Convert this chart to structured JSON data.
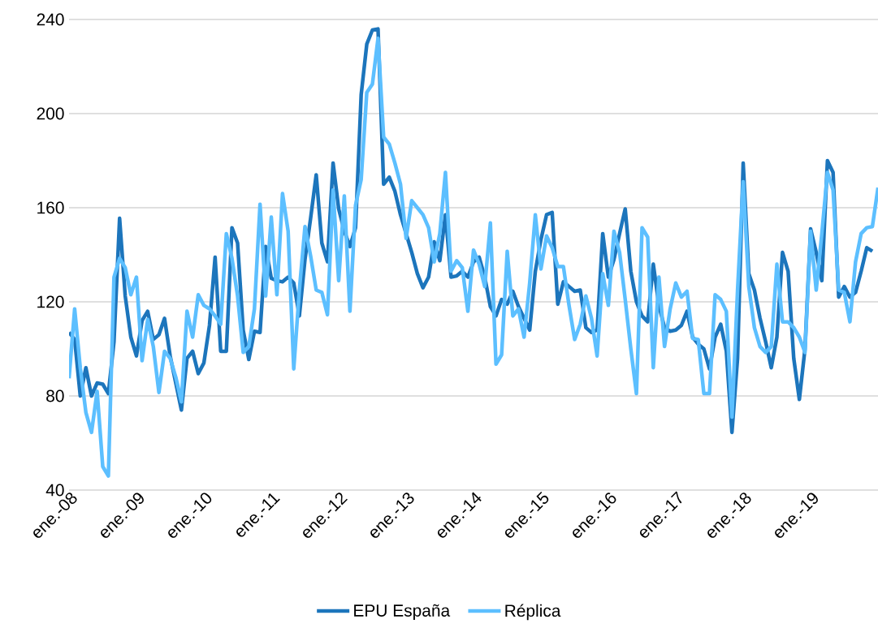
{
  "chart_data": {
    "type": "line",
    "categories": [
      "ene.-08",
      null,
      null,
      null,
      null,
      null,
      null,
      null,
      null,
      null,
      null,
      null,
      "ene.-09",
      null,
      null,
      null,
      null,
      null,
      null,
      null,
      null,
      null,
      null,
      null,
      "ene.-10",
      null,
      null,
      null,
      null,
      null,
      null,
      null,
      null,
      null,
      null,
      null,
      "ene.-11",
      null,
      null,
      null,
      null,
      null,
      null,
      null,
      null,
      null,
      null,
      null,
      "ene.-12",
      null,
      null,
      null,
      null,
      null,
      null,
      null,
      null,
      null,
      null,
      null,
      "ene.-13",
      null,
      null,
      null,
      null,
      null,
      null,
      null,
      null,
      null,
      null,
      null,
      "ene.-14",
      null,
      null,
      null,
      null,
      null,
      null,
      null,
      null,
      null,
      null,
      null,
      "ene.-15",
      null,
      null,
      null,
      null,
      null,
      null,
      null,
      null,
      null,
      null,
      null,
      "ene.-16",
      null,
      null,
      null,
      null,
      null,
      null,
      null,
      null,
      null,
      null,
      null,
      "ene.-17",
      null,
      null,
      null,
      null,
      null,
      null,
      null,
      null,
      null,
      null,
      null,
      "ene.-18",
      null,
      null,
      null,
      null,
      null,
      null,
      null,
      null,
      null,
      null,
      null,
      "ene.-19",
      null,
      null,
      null,
      null,
      null,
      null,
      null,
      null,
      null,
      null,
      null,
      null
    ],
    "series": [
      {
        "name": "EPU España",
        "color": "#1c75bc",
        "values": [
          107,
          104,
          80,
          92,
          80,
          85.5,
          85,
          81,
          103,
          155.5,
          122.5,
          105,
          97,
          112,
          116,
          104,
          106,
          113,
          97,
          85.5,
          74,
          96,
          99,
          89.5,
          94,
          110,
          139,
          99,
          99,
          151.5,
          145,
          108,
          95.5,
          107.5,
          107,
          143.5,
          130,
          129,
          128.5,
          130.5,
          128,
          114,
          138,
          155.5,
          174,
          145,
          137,
          179,
          159.5,
          150,
          143.5,
          151.5,
          208,
          229.5,
          235.5,
          236,
          170,
          173,
          167,
          157,
          149,
          141,
          132,
          126,
          130.5,
          145.5,
          137.5,
          157,
          130.5,
          131,
          133,
          130.5,
          137,
          139,
          130.5,
          118,
          114,
          121,
          119,
          124.5,
          118,
          113,
          108,
          133,
          146.5,
          157,
          158,
          119,
          128.5,
          126.5,
          124.5,
          125,
          109,
          107,
          108,
          149,
          130.5,
          138,
          149,
          159.5,
          133,
          120,
          114,
          111.5,
          136,
          118.5,
          109,
          107.5,
          108,
          110,
          116,
          105,
          102,
          100,
          91.5,
          105,
          110.5,
          99,
          64.5,
          96,
          179,
          132,
          125,
          113,
          103,
          92,
          105,
          141,
          133,
          96,
          78.5,
          100,
          151,
          141,
          129,
          180,
          175,
          122,
          126.5,
          122,
          124,
          133,
          143,
          141.5,
          null
        ]
      },
      {
        "name": "Réplica",
        "color": "#5cbfff",
        "values": [
          87.5,
          117,
          92,
          73,
          64.5,
          82,
          50,
          46,
          130.5,
          138.5,
          134.5,
          123,
          130.5,
          95,
          112.5,
          101,
          81.5,
          99,
          96,
          88,
          77.5,
          116,
          105,
          123,
          118.5,
          117,
          114,
          110.5,
          149,
          138.5,
          122.5,
          98.5,
          101,
          117,
          161.5,
          122.5,
          156,
          123,
          166,
          150,
          91.5,
          125,
          152,
          139.5,
          125,
          124,
          114.5,
          167.5,
          129,
          165,
          116,
          161,
          172,
          209,
          212.5,
          232,
          190,
          187,
          179,
          170,
          147,
          163,
          160,
          157,
          151.5,
          137,
          149,
          175,
          133,
          137.5,
          134.5,
          116,
          142,
          136,
          126.5,
          153.5,
          93.5,
          97.5,
          141.5,
          114,
          117,
          105,
          128,
          157,
          134,
          148,
          143,
          135,
          135,
          118.5,
          104,
          110.5,
          122.5,
          113,
          97,
          132,
          118.5,
          150,
          141,
          121,
          100,
          81,
          151.5,
          147.5,
          92,
          130.5,
          101,
          117,
          128,
          122,
          124.5,
          104.5,
          104,
          81,
          81,
          123,
          121,
          116,
          71,
          125,
          171,
          126.5,
          109,
          101,
          98.5,
          101,
          136,
          111.5,
          111.5,
          109,
          105,
          98.5,
          150,
          125,
          149,
          175,
          167.5,
          125,
          124,
          111.5,
          137,
          149,
          151.5,
          152,
          168.5
        ]
      }
    ],
    "ylim": [
      40,
      240
    ],
    "yticks": [
      40,
      80,
      120,
      160,
      200,
      240
    ],
    "grid": "y",
    "legend": "bottom"
  }
}
